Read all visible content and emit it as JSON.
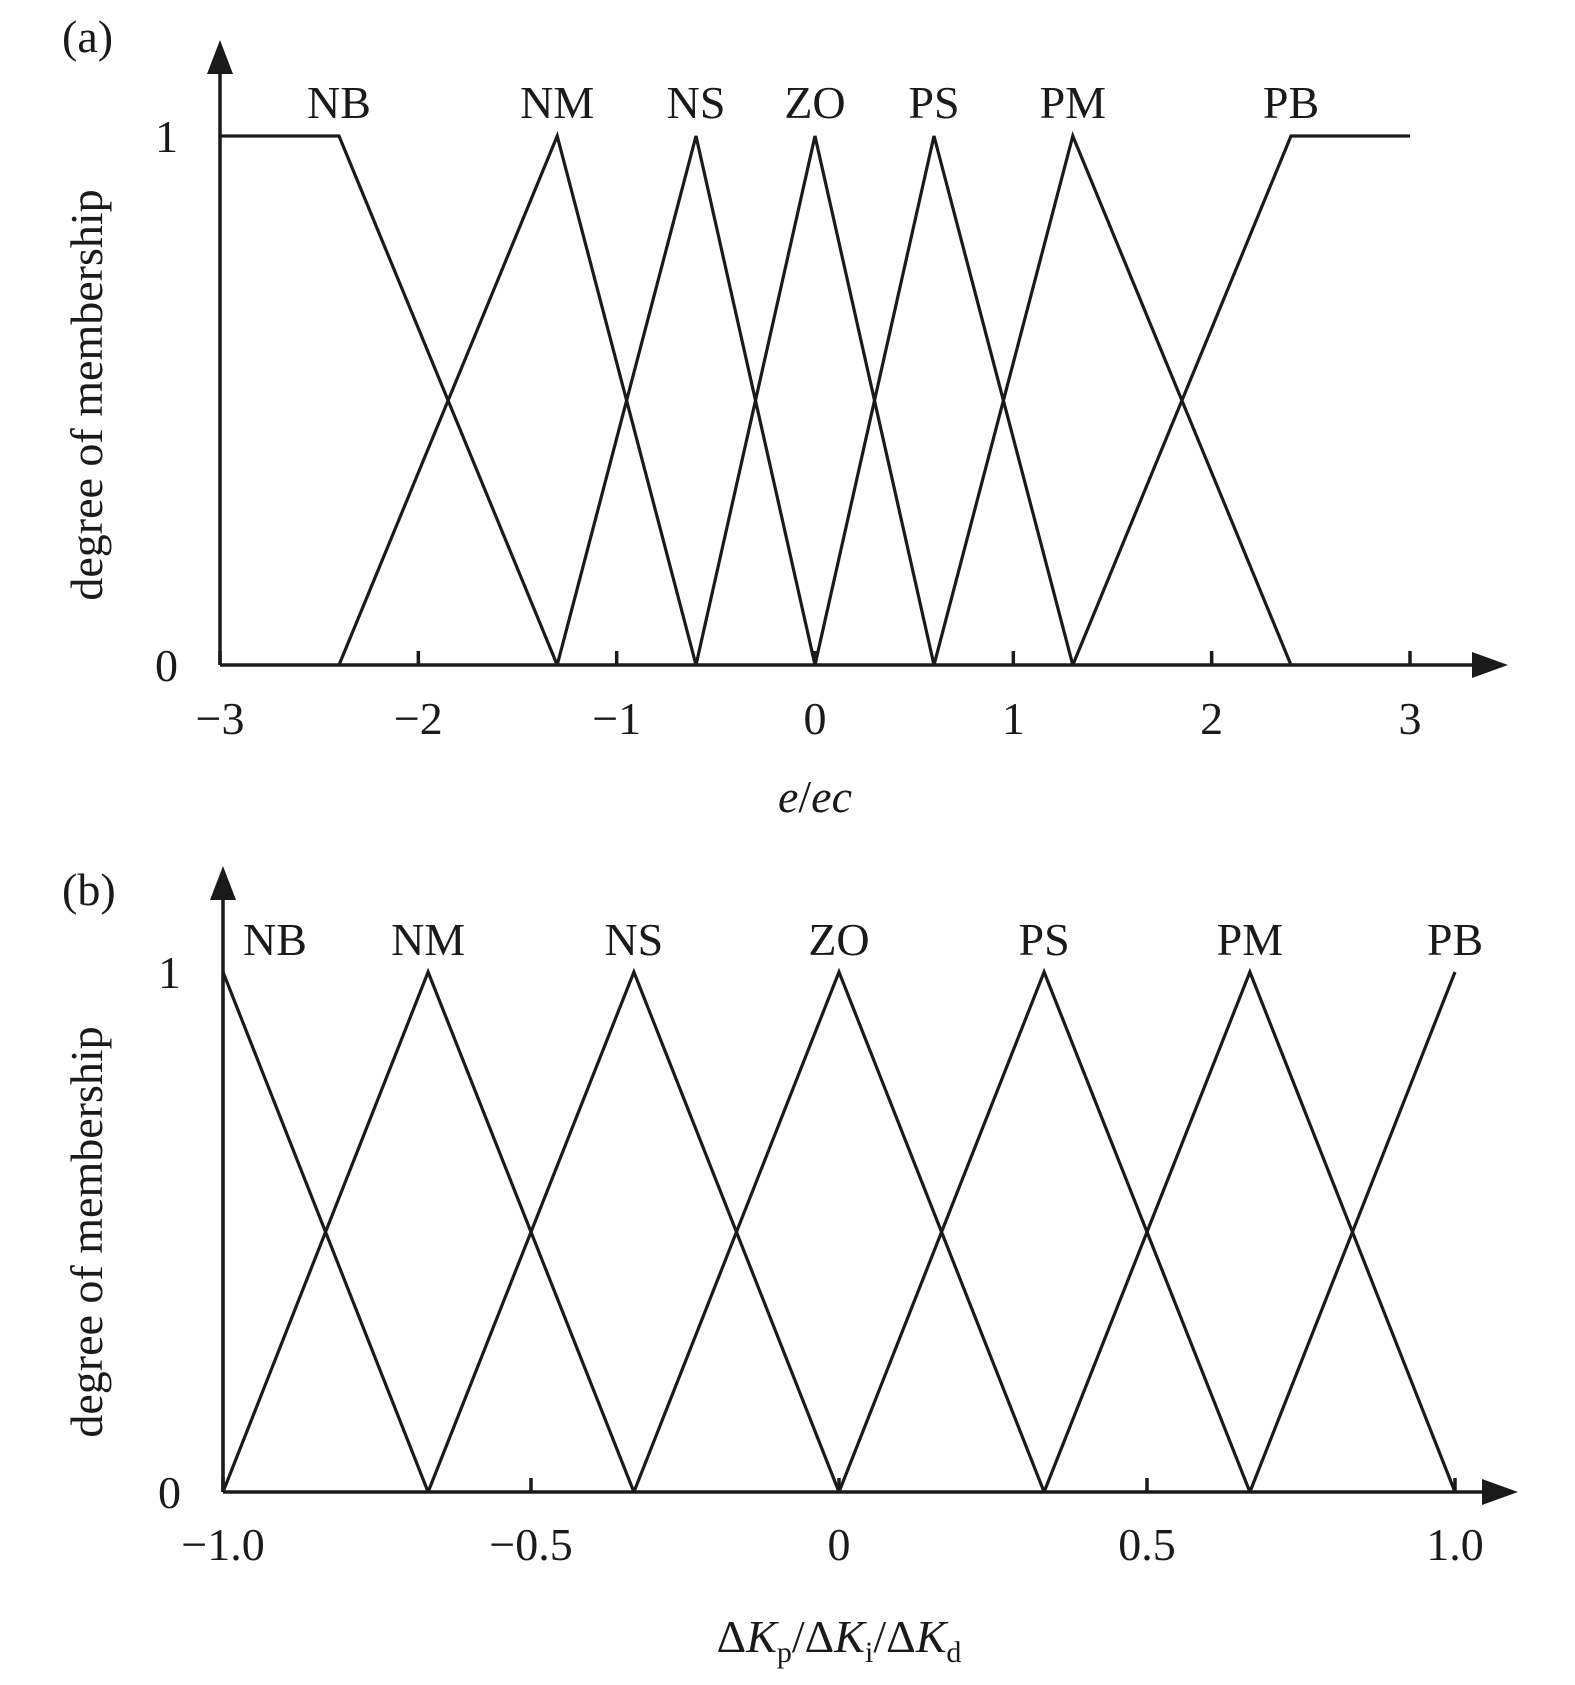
{
  "chart_data": [
    {
      "panel": "(a)",
      "type": "line",
      "xlabel": "e/ec",
      "ylabel": "degree of membership",
      "xlim": [
        -3,
        3
      ],
      "ylim": [
        0,
        1
      ],
      "x_ticks": [
        -3,
        -2,
        -1,
        0,
        1,
        2,
        3
      ],
      "x_tick_labels": [
        "−3",
        "−2",
        "−1",
        "0",
        "1",
        "2",
        "3"
      ],
      "y_ticks": [
        0,
        1
      ],
      "y_tick_labels": [
        "0",
        "1"
      ],
      "grid": false,
      "series": [
        {
          "name": "NB",
          "x": [
            -3,
            -2.4,
            -1.3
          ],
          "y": [
            1,
            1,
            0
          ]
        },
        {
          "name": "NM",
          "x": [
            -2.4,
            -1.3,
            -0.6
          ],
          "y": [
            0,
            1,
            0
          ]
        },
        {
          "name": "NS",
          "x": [
            -1.3,
            -0.6,
            0
          ],
          "y": [
            0,
            1,
            0
          ]
        },
        {
          "name": "ZO",
          "x": [
            -0.6,
            0,
            0.6
          ],
          "y": [
            0,
            1,
            0
          ]
        },
        {
          "name": "PS",
          "x": [
            0,
            0.6,
            1.3
          ],
          "y": [
            0,
            1,
            0
          ]
        },
        {
          "name": "PM",
          "x": [
            0.6,
            1.3,
            2.4
          ],
          "y": [
            0,
            1,
            0
          ]
        },
        {
          "name": "PB",
          "x": [
            1.3,
            2.4,
            3
          ],
          "y": [
            0,
            1,
            1
          ]
        }
      ]
    },
    {
      "panel": "(b)",
      "type": "line",
      "xlabel": "ΔKp/ΔKi/ΔKd",
      "xlabel_parts": [
        {
          "text": "Δ",
          "style": "normal"
        },
        {
          "text": "K",
          "style": "italic"
        },
        {
          "text": "p",
          "style": "sub"
        },
        {
          "text": "/Δ",
          "style": "normal"
        },
        {
          "text": "K",
          "style": "italic"
        },
        {
          "text": "i",
          "style": "sub"
        },
        {
          "text": "/Δ",
          "style": "normal"
        },
        {
          "text": "K",
          "style": "italic"
        },
        {
          "text": "d",
          "style": "sub"
        }
      ],
      "ylabel": "degree of membership",
      "xlim": [
        -1.0,
        1.0
      ],
      "ylim": [
        0,
        1
      ],
      "x_ticks": [
        -1.0,
        -0.5,
        0,
        0.5,
        1.0
      ],
      "x_tick_labels": [
        "−1.0",
        "−0.5",
        "0",
        "0.5",
        "1.0"
      ],
      "y_ticks": [
        0,
        1
      ],
      "y_tick_labels": [
        "0",
        "1"
      ],
      "grid": false,
      "series": [
        {
          "name": "NB",
          "x": [
            -1.0,
            -1.0,
            -0.667
          ],
          "y": [
            0,
            1,
            0
          ]
        },
        {
          "name": "NM",
          "x": [
            -1.0,
            -0.667,
            -0.333
          ],
          "y": [
            0,
            1,
            0
          ]
        },
        {
          "name": "NS",
          "x": [
            -0.667,
            -0.333,
            0
          ],
          "y": [
            0,
            1,
            0
          ]
        },
        {
          "name": "ZO",
          "x": [
            -0.333,
            0,
            0.333
          ],
          "y": [
            0,
            1,
            0
          ]
        },
        {
          "name": "PS",
          "x": [
            0,
            0.333,
            0.667
          ],
          "y": [
            0,
            1,
            0
          ]
        },
        {
          "name": "PM",
          "x": [
            0.333,
            0.667,
            1.0
          ],
          "y": [
            0,
            1,
            0
          ]
        },
        {
          "name": "PB",
          "x": [
            0.667,
            1.0
          ],
          "y": [
            0,
            1
          ]
        }
      ]
    }
  ]
}
